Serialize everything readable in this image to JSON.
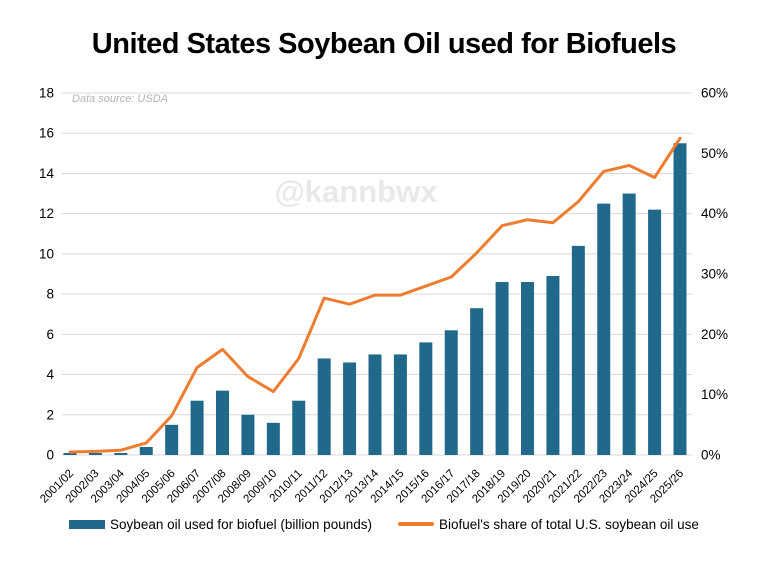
{
  "page": {
    "title": "United States Soybean Oil used for Biofuels",
    "data_source": "Data source: USDA",
    "watermark": "@kannbwx"
  },
  "chart_data": {
    "type": "combo",
    "title": "United States Soybean Oil used for Biofuels",
    "categories": [
      "2001/02",
      "2002/03",
      "2003/04",
      "2004/05",
      "2005/06",
      "2006/07",
      "2007/08",
      "2008/09",
      "2009/10",
      "2010/11",
      "2011/12",
      "2012/13",
      "2013/14",
      "2014/15",
      "2015/16",
      "2016/17",
      "2017/18",
      "2018/19",
      "2019/20",
      "2020/21",
      "2021/22",
      "2022/23",
      "2023/24",
      "2024/25",
      "2025/26"
    ],
    "series": [
      {
        "name": "Soybean oil used for biofuel (billion pounds)",
        "type": "bar",
        "axis": "left",
        "color": "#20698b",
        "values": [
          0.1,
          0.1,
          0.1,
          0.4,
          1.5,
          2.7,
          3.2,
          2.0,
          1.6,
          2.7,
          4.8,
          4.6,
          5.0,
          5.0,
          5.6,
          6.2,
          7.3,
          8.6,
          8.6,
          8.9,
          10.4,
          12.5,
          13.0,
          12.2,
          15.5
        ]
      },
      {
        "name": "Biofuel's share of total U.S. soybean oil use",
        "type": "line",
        "axis": "right",
        "color": "#ee7d30",
        "values": [
          0.5,
          0.6,
          0.8,
          2,
          6.5,
          14.5,
          17.5,
          13,
          10.5,
          16,
          26,
          25,
          26.5,
          26.5,
          28,
          29.5,
          33.5,
          38,
          39,
          38.5,
          42,
          47,
          48,
          46,
          52.5
        ]
      }
    ],
    "left_axis": {
      "min": 0,
      "max": 18,
      "step": 2,
      "tick_labels": [
        "0",
        "2",
        "4",
        "6",
        "8",
        "10",
        "12",
        "14",
        "16",
        "18"
      ]
    },
    "right_axis": {
      "min": 0,
      "max": 60,
      "step": 10,
      "suffix": "%",
      "tick_labels": [
        "0%",
        "10%",
        "20%",
        "30%",
        "40%",
        "50%",
        "60%"
      ]
    },
    "grid": true,
    "legend_position": "bottom",
    "annotations": [
      "Data source: USDA",
      "@kannbwx"
    ],
    "colors": {
      "grid": "#d9d9d9",
      "text": "#000000",
      "source_text": "#b5b5b5",
      "watermark": "#e9e9e9"
    }
  }
}
